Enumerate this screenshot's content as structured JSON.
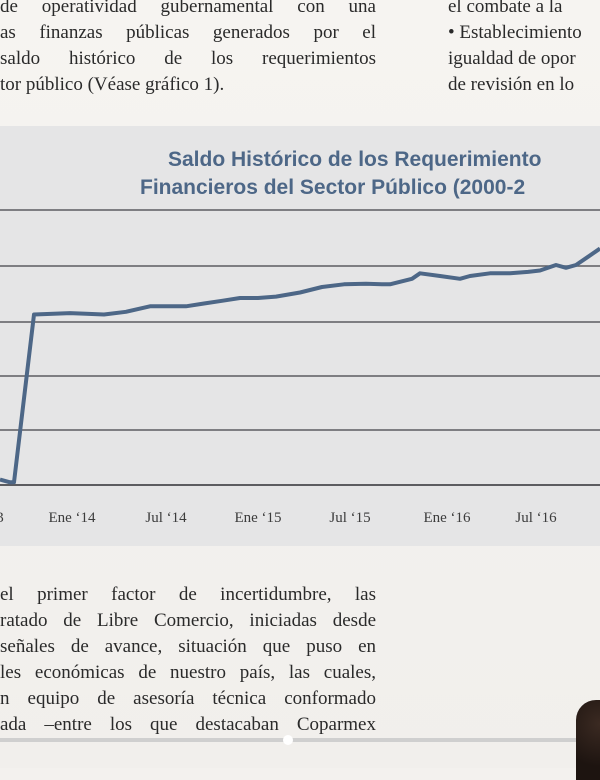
{
  "text_top_left": [
    "de operatividad gubernamental con una",
    "as finanzas públicas generados por el",
    "saldo histórico de los requerimientos",
    "tor público (Véase gráfico 1)."
  ],
  "text_top_right": [
    "el combate a la",
    "• Establecimiento",
    "igualdad de opor",
    "de revisión en lo"
  ],
  "text_bottom_left": [
    "el primer factor de incertidumbre, las",
    "ratado de Libre Comercio, iniciadas desde",
    "señales de avance, situación que puso en",
    "les económicas de nuestro país, las cuales,",
    "n equipo de asesoría técnica conformado",
    "ada –entre los que destacaban Coparmex"
  ],
  "chart_data": {
    "type": "line",
    "title_line1": "Saldo Histórico de los Requerimiento",
    "title_line2": "Financieros del Sector Público (2000-2",
    "x_tick_labels": [
      "3",
      "Ene ‘14",
      "Jul ‘14",
      "Ene ‘15",
      "Jul ‘15",
      "Ene ‘16",
      "Jul ‘16"
    ],
    "series_color": "#4d6787",
    "grid": true,
    "series": [
      {
        "values": [
          2,
          1,
          1,
          62,
          62.5,
          62.3,
          62,
          63,
          65,
          65,
          65,
          66,
          67,
          68,
          68,
          68.5,
          70,
          72,
          73,
          73.2,
          73,
          73,
          75,
          77,
          76,
          75,
          76,
          77,
          77,
          77.5,
          78,
          80,
          79,
          80,
          83,
          85,
          86
        ]
      }
    ]
  }
}
